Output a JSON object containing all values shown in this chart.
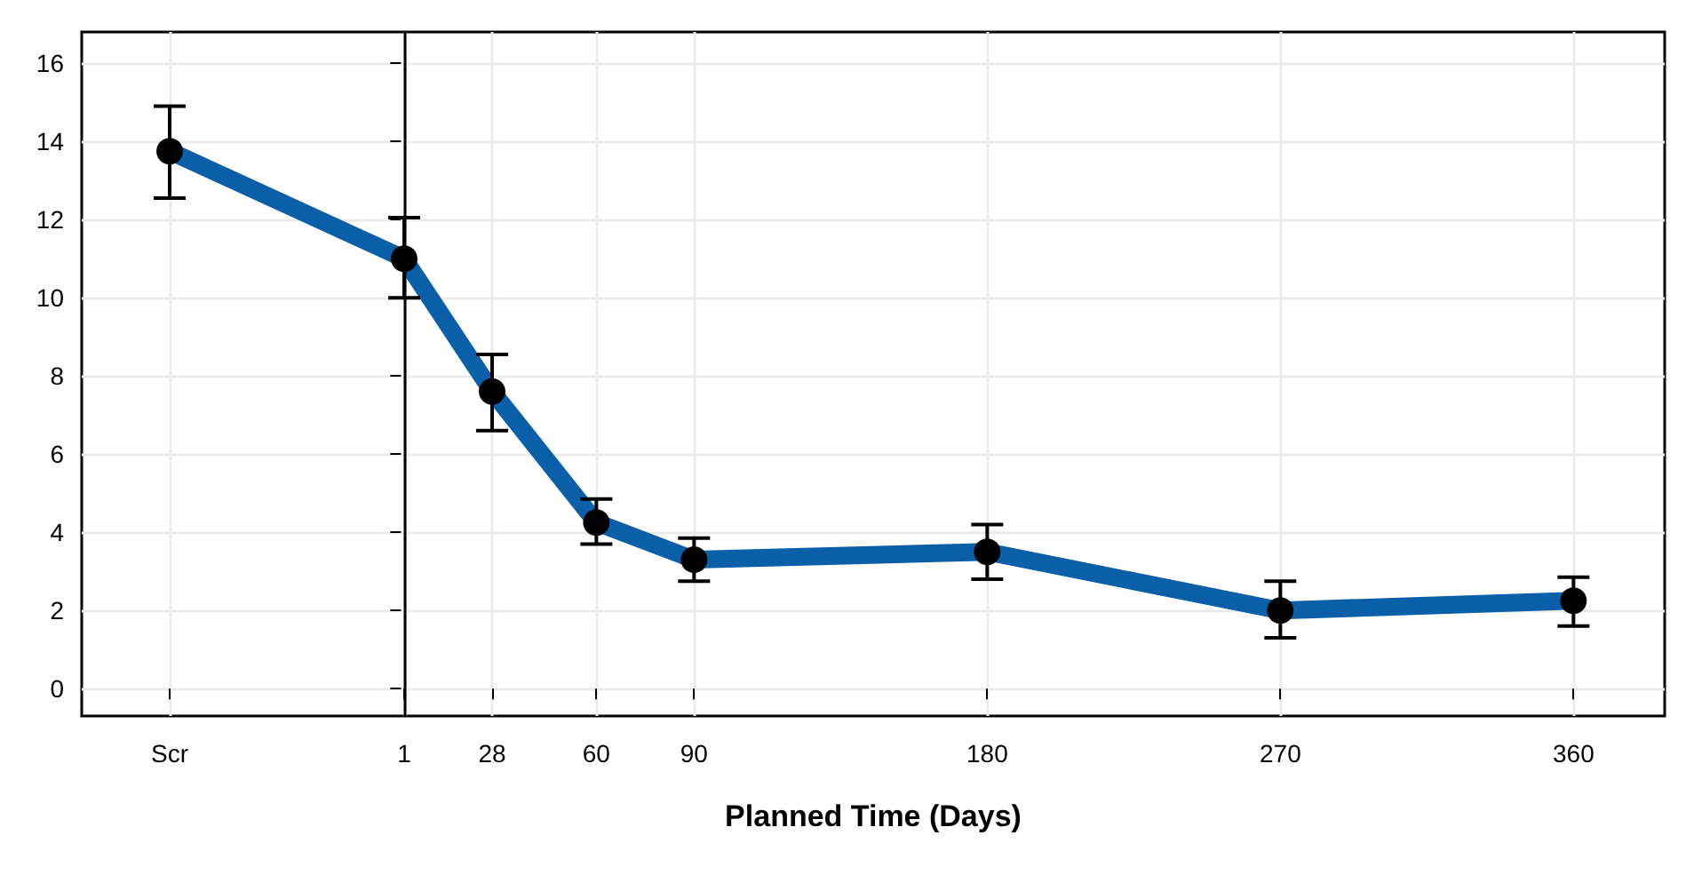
{
  "chart_data": {
    "type": "line",
    "xlabel": "Planned Time (Days)",
    "x": [
      -71,
      1,
      28,
      60,
      90,
      180,
      270,
      360
    ],
    "series": [
      {
        "color": "#0a5fa8",
        "values": [
          13.75,
          11.0,
          7.6,
          4.25,
          3.3,
          3.5,
          2.0,
          2.25
        ],
        "errors": [
          [
            12.55,
            14.9
          ],
          [
            10.0,
            12.05
          ],
          [
            6.6,
            8.55
          ],
          [
            3.7,
            4.85
          ],
          [
            2.75,
            3.85
          ],
          [
            2.8,
            4.2
          ],
          [
            1.3,
            2.75
          ],
          [
            1.6,
            2.85
          ]
        ]
      }
    ],
    "xlim": [
      -98,
      388
    ],
    "xticks": [
      {
        "value": -71,
        "label": "Scr"
      },
      1,
      28,
      60,
      90,
      180,
      270,
      360
    ],
    "ylim": [
      -0.7,
      16.8
    ],
    "yticks": [
      0,
      2,
      4,
      6,
      8,
      10,
      12,
      14,
      16
    ],
    "ref_lines": [
      {
        "axis": "x",
        "value": 1,
        "color": "#000000"
      }
    ],
    "grid": true,
    "marker": "circle",
    "line_style": "solid"
  }
}
